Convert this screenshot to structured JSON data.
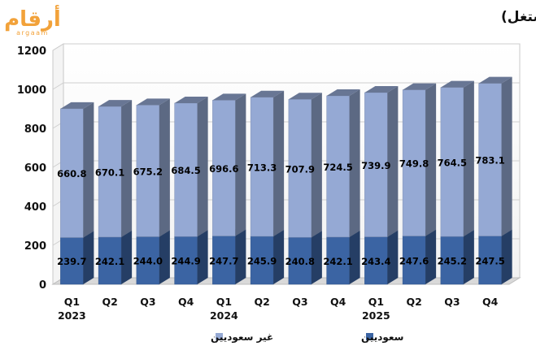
{
  "logo": {
    "text_ar": "أرقام",
    "text_en": "argaam",
    "color": "#f2a23a"
  },
  "chart_data": {
    "type": "bar",
    "stacked": true,
    "three_d": true,
    "title": "تطور عدد المشتغلين في الأنشطة السياحية بالسعودية (ألف مشتغل)",
    "xlabel": "",
    "ylabel": "",
    "ylim": [
      0,
      1200
    ],
    "yticks": [
      0,
      200,
      400,
      600,
      800,
      1000,
      1200
    ],
    "grid": true,
    "legend_position": "bottom",
    "categories": [
      "Q1",
      "Q2",
      "Q3",
      "Q4",
      "Q1",
      "Q2",
      "Q3",
      "Q4",
      "Q1",
      "Q2",
      "Q3",
      "Q4"
    ],
    "category_years": [
      "2023",
      "",
      "",
      "",
      "2024",
      "",
      "",
      "",
      "2025",
      "",
      "",
      ""
    ],
    "series": [
      {
        "name": "سعوديين",
        "color": "#3b64a3",
        "values": [
          239.7,
          242.1,
          244.0,
          244.9,
          247.7,
          245.9,
          240.8,
          242.1,
          243.4,
          247.6,
          245.2,
          247.5
        ]
      },
      {
        "name": "غير سعوديين",
        "color": "#95a9d4",
        "values": [
          660.8,
          670.1,
          675.2,
          684.5,
          696.6,
          713.3,
          707.9,
          724.5,
          739.9,
          749.8,
          764.5,
          783.1
        ]
      }
    ]
  }
}
